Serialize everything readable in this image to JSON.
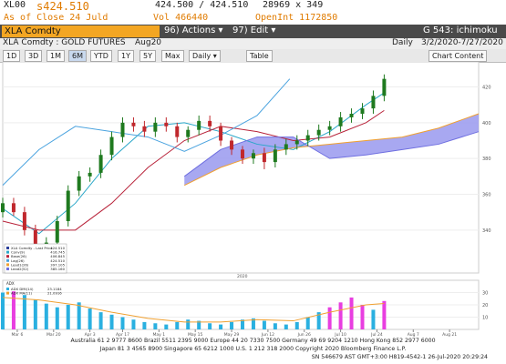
{
  "header": {
    "ticker": "XL00",
    "last": "s424.510",
    "bid_ask": "424.500 / 424.510",
    "size": "28969 x 349",
    "as_of": "As of Close 24 Juld",
    "volume": "Vol 466440",
    "open_int": "OpenInt 1172850"
  },
  "command_bar": {
    "security": "XLA Comdty",
    "actions": "96) Actions ▾",
    "edit": "97) Edit ▾",
    "function": "G 543: ichimoku"
  },
  "info_bar": {
    "name": "XLA Comdty : GOLD FUTURES",
    "contract": "Aug20",
    "period": "Daily",
    "range": "3/2/2020-7/27/2020"
  },
  "toolbar": {
    "buttons": [
      "1D",
      "3D",
      "1M",
      "6M",
      "YTD",
      "1Y",
      "5Y",
      "Max",
      "Daily ▾"
    ],
    "table": "Table",
    "content": "Chart Content"
  },
  "chart": {
    "xlim": [
      0,
      131
    ],
    "ylim": [
      316,
      434
    ],
    "yticks": [
      340,
      360,
      380,
      400,
      420
    ],
    "xticks": [
      {
        "value": 4,
        "label": "Mar 6"
      },
      {
        "value": 14,
        "label": "Mar 20"
      },
      {
        "value": 24,
        "label": "Apr 3"
      },
      {
        "value": 33,
        "label": "Apr 17"
      },
      {
        "value": 43,
        "label": "May 1"
      },
      {
        "value": 53,
        "label": "May 15"
      },
      {
        "value": 63,
        "label": "May 29"
      },
      {
        "value": 73,
        "label": "Jun 12"
      },
      {
        "value": 83,
        "label": "Jun 26"
      },
      {
        "value": 93,
        "label": "Jul 10"
      },
      {
        "value": 103,
        "label": "Jul 24"
      },
      {
        "value": 113,
        "label": "Aug 7"
      },
      {
        "value": 123,
        "label": "Aug 21"
      }
    ],
    "year": "2020",
    "candles": {
      "name": "XLA Comdty - Last Price",
      "last": "424.510",
      "x": [
        0,
        3,
        6,
        9,
        12,
        15,
        18,
        21,
        24,
        27,
        30,
        33,
        36,
        39,
        42,
        45,
        48,
        51,
        54,
        57,
        60,
        63,
        66,
        69,
        72,
        75,
        78,
        81,
        84,
        87,
        90,
        93,
        96,
        99,
        102,
        105
      ],
      "open": [
        350,
        355,
        350,
        340,
        330,
        333,
        345,
        362,
        370,
        372,
        382,
        392,
        400,
        398,
        395,
        400,
        398,
        392,
        396,
        401,
        398,
        390,
        385,
        380,
        383,
        378,
        385,
        388,
        390,
        393,
        396,
        398,
        403,
        405,
        408,
        415
      ],
      "high": [
        358,
        358,
        353,
        343,
        336,
        348,
        365,
        373,
        375,
        385,
        395,
        403,
        403,
        401,
        403,
        403,
        400,
        398,
        404,
        404,
        400,
        392,
        387,
        385,
        386,
        388,
        391,
        393,
        396,
        399,
        401,
        406,
        408,
        411,
        418,
        427
      ],
      "low": [
        347,
        348,
        337,
        327,
        325,
        330,
        342,
        359,
        367,
        369,
        379,
        389,
        395,
        392,
        392,
        395,
        389,
        389,
        393,
        395,
        387,
        382,
        377,
        377,
        374,
        375,
        382,
        385,
        387,
        390,
        393,
        395,
        400,
        402,
        405,
        412
      ],
      "close": [
        355,
        350,
        340,
        330,
        333,
        345,
        362,
        370,
        372,
        382,
        392,
        400,
        398,
        395,
        400,
        398,
        392,
        396,
        401,
        398,
        390,
        385,
        380,
        383,
        378,
        385,
        388,
        390,
        393,
        396,
        398,
        403,
        405,
        408,
        415,
        424.51
      ],
      "up_color": "#1f7a1f",
      "down_color": "#c0282d"
    },
    "series": [
      {
        "name": "Conv(9)",
        "last": "416.745",
        "color": "#2aa7c9",
        "x": [
          0,
          10,
          20,
          30,
          40,
          50,
          60,
          70,
          80,
          90,
          100,
          105
        ],
        "values": [
          352,
          338,
          355,
          380,
          398,
          400,
          395,
          388,
          385,
          395,
          410,
          416.745
        ]
      },
      {
        "name": "Base(26)",
        "last": "406.845",
        "color": "#b8233a",
        "x": [
          0,
          10,
          20,
          30,
          40,
          50,
          60,
          70,
          80,
          90,
          100,
          105
        ],
        "values": [
          345,
          340,
          340,
          355,
          375,
          390,
          398,
          395,
          390,
          392,
          400,
          406.845
        ]
      },
      {
        "name": "Lag(26)",
        "last": "424.510",
        "color": "#4aa3df",
        "x": [
          0,
          10,
          20,
          30,
          40,
          50,
          60,
          70,
          79
        ],
        "values": [
          365,
          385,
          398,
          395,
          392,
          384,
          393,
          404,
          424.51
        ]
      },
      {
        "name": "Lead1(26)",
        "last": "397.105",
        "color": "#f0a030",
        "x": [
          50,
          60,
          70,
          80,
          90,
          100,
          110,
          120,
          131
        ],
        "values": [
          365,
          375,
          382,
          386,
          388,
          390,
          392,
          397,
          405
        ]
      },
      {
        "name": "Lead2(52)",
        "last": "385.160",
        "color": "#6f6fe0",
        "x": [
          50,
          60,
          70,
          80,
          90,
          100,
          110,
          120,
          131
        ],
        "values": [
          370,
          385,
          392,
          392,
          380,
          382,
          385,
          388,
          395
        ]
      }
    ],
    "cloud_color": "#9999ee"
  },
  "adx": {
    "title": "ADX",
    "ylim": [
      0,
      40
    ],
    "yticks": [
      10,
      20,
      30
    ],
    "bars": {
      "name": "ADX DMI(14)",
      "last": "23.1184",
      "color": "#2ab0e0",
      "strong_color": "#e83ee0",
      "x": [
        0,
        3,
        6,
        9,
        12,
        15,
        18,
        21,
        24,
        27,
        30,
        33,
        36,
        39,
        42,
        45,
        48,
        51,
        54,
        57,
        60,
        63,
        66,
        69,
        72,
        75,
        78,
        81,
        84,
        87,
        90,
        93,
        96,
        99,
        102,
        105
      ],
      "values": [
        30,
        31,
        28,
        24,
        21,
        18,
        20,
        22,
        17,
        14,
        12,
        10,
        8,
        6,
        5,
        4,
        6,
        8,
        7,
        5,
        4,
        6,
        8,
        9,
        7,
        5,
        4,
        6,
        10,
        14,
        18,
        22,
        26,
        20,
        16,
        23.1184
      ],
      "strong": [
        false,
        true,
        false,
        false,
        false,
        false,
        false,
        false,
        false,
        false,
        false,
        false,
        false,
        false,
        false,
        false,
        false,
        false,
        false,
        false,
        false,
        false,
        false,
        false,
        false,
        false,
        false,
        false,
        false,
        false,
        true,
        true,
        true,
        true,
        false,
        true
      ]
    },
    "line": {
      "name": "ADX MA(11)",
      "last": "21.0916",
      "color": "#f0a030",
      "x": [
        0,
        10,
        20,
        30,
        40,
        50,
        60,
        70,
        80,
        90,
        100,
        105
      ],
      "values": [
        26,
        24,
        20,
        14,
        9,
        6,
        6,
        8,
        7,
        14,
        20,
        21.0916
      ]
    }
  },
  "footer": {
    "line1": "Australia 61 2 9777 8600 Brazil 5511 2395 9000 Europe 44 20 7330 7500 Germany 49 69 9204 1210 Hong Kong 852 2977 6000",
    "line2": "Japan 81 3 4565 8900       Singapore 65 6212 1000       U.S. 1 212 318 2000       Copyright 2020 Bloomberg Finance L.P.",
    "line3": "SN 546679 AST  GMT+3:00 H819-4542-1 26-Jul-2020 20:29:24"
  }
}
